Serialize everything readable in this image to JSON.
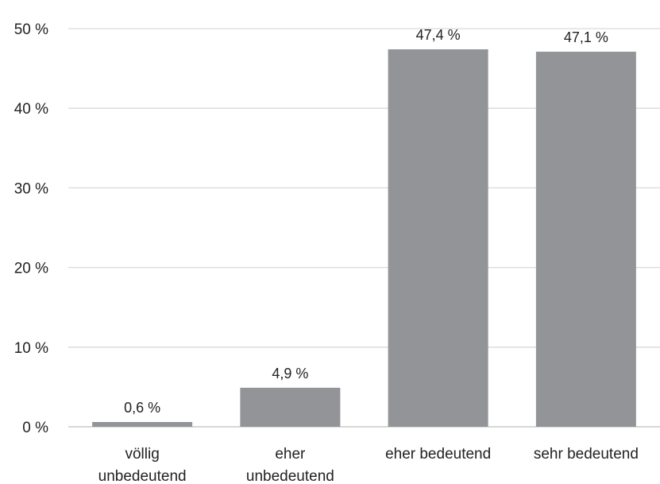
{
  "chart_data": {
    "type": "bar",
    "categories": [
      [
        "völlig",
        "unbedeutend"
      ],
      [
        "eher",
        "unbedeutend"
      ],
      [
        "eher bedeutend"
      ],
      [
        "sehr bedeutend"
      ]
    ],
    "values": [
      0.6,
      4.9,
      47.4,
      47.1
    ],
    "data_labels": [
      "0,6 %",
      "4,9 %",
      "47,4 %",
      "47,1 %"
    ],
    "ylim": [
      0,
      50
    ],
    "yticks": [
      0,
      10,
      20,
      30,
      40,
      50
    ],
    "ytick_labels": [
      "0 %",
      "10 %",
      "20 %",
      "30 %",
      "40 %",
      "50 %"
    ],
    "grid": true,
    "bar_color": "#939497",
    "title": "",
    "xlabel": "",
    "ylabel": ""
  }
}
